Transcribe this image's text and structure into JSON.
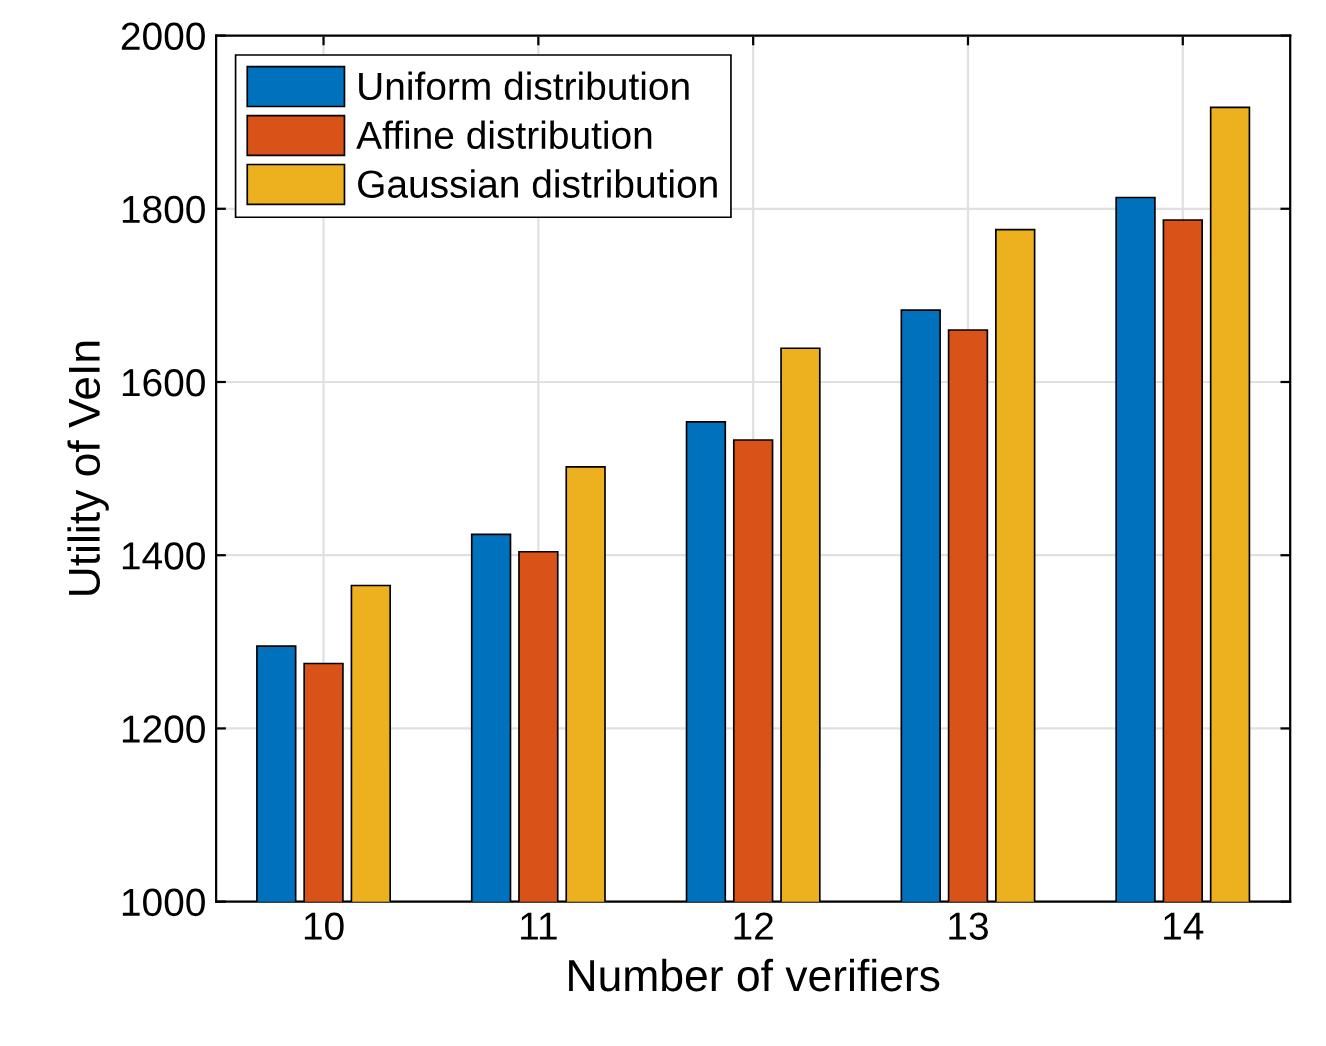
{
  "chart_data": {
    "type": "bar",
    "xlabel": "Number of verifiers",
    "ylabel": "Utility of VeIn",
    "categories": [
      "10",
      "11",
      "12",
      "13",
      "14"
    ],
    "series": [
      {
        "name": "Uniform distribution",
        "color": "#0072bd",
        "values": [
          1295,
          1424,
          1554,
          1683,
          1813
        ]
      },
      {
        "name": "Affine distribution",
        "color": "#d95319",
        "values": [
          1275,
          1404,
          1533,
          1660,
          1787
        ]
      },
      {
        "name": "Gaussian distribution",
        "color": "#edb120",
        "values": [
          1365,
          1502,
          1639,
          1776,
          1917
        ]
      }
    ],
    "ylim": [
      1000,
      2000
    ],
    "yticks": [
      1000,
      1200,
      1400,
      1600,
      1800,
      2000
    ],
    "grid": true,
    "legend": "top left"
  }
}
